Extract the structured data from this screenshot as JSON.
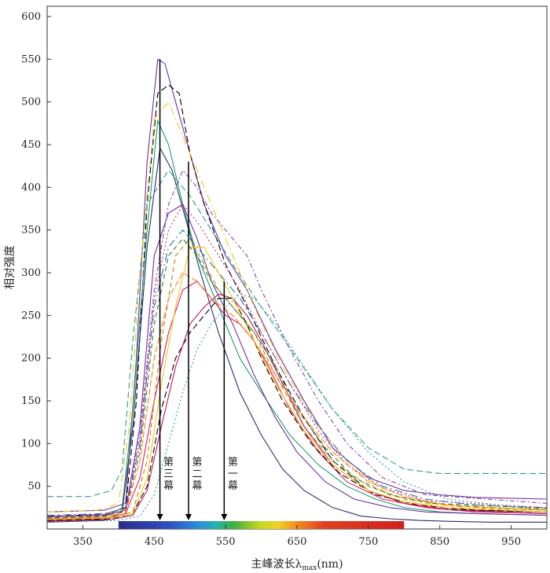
{
  "chart_data": {
    "type": "line",
    "title": "",
    "xlabel": "主峰波长λ",
    "xlabel_sub": "max",
    "xlabel_unit": "(nm)",
    "ylabel": "相对强度",
    "xlim": [
      300,
      1000
    ],
    "ylim": [
      0,
      612
    ],
    "x_ticks": [
      350,
      450,
      550,
      650,
      750,
      850,
      950
    ],
    "y_ticks": [
      50,
      100,
      150,
      200,
      250,
      300,
      350,
      400,
      450,
      500,
      550,
      600
    ],
    "grid": false,
    "legend": "none",
    "spectrum_bar": {
      "from": 400,
      "to": 800
    },
    "annotations": [
      {
        "text": "第三幕",
        "x": 458,
        "y_top": 550
      },
      {
        "text": "第二幕",
        "x": 498,
        "y_top": 430
      },
      {
        "text": "第一幕",
        "x": 548,
        "y_top": 290
      }
    ],
    "series": [
      {
        "color": "#7030a0",
        "dash": "solid",
        "x": [
          300,
          380,
          410,
          425,
          440,
          455,
          465,
          480,
          500,
          520,
          550,
          580,
          620,
          660,
          700,
          750,
          800,
          850,
          900,
          1000
        ],
        "y": [
          20,
          22,
          30,
          200,
          430,
          550,
          545,
          500,
          440,
          380,
          320,
          280,
          210,
          150,
          95,
          60,
          45,
          40,
          37,
          35
        ]
      },
      {
        "color": "#000000",
        "dash": "8,4",
        "x": [
          300,
          380,
          410,
          425,
          440,
          455,
          470,
          485,
          500,
          520,
          550,
          580,
          620,
          660,
          700,
          750,
          800,
          850,
          900,
          1000
        ],
        "y": [
          15,
          17,
          25,
          150,
          380,
          510,
          520,
          510,
          440,
          380,
          310,
          260,
          190,
          130,
          80,
          45,
          30,
          24,
          22,
          20
        ]
      },
      {
        "color": "#1aa06a",
        "dash": "solid",
        "x": [
          300,
          380,
          405,
          420,
          440,
          455,
          470,
          490,
          510,
          540,
          570,
          600,
          640,
          680,
          720,
          760,
          800,
          850,
          900,
          1000
        ],
        "y": [
          12,
          14,
          25,
          140,
          350,
          478,
          450,
          380,
          320,
          260,
          200,
          160,
          110,
          75,
          50,
          35,
          25,
          20,
          18,
          16
        ]
      },
      {
        "color": "#2d2d6e",
        "dash": "solid",
        "x": [
          300,
          380,
          405,
          420,
          440,
          458,
          475,
          495,
          515,
          540,
          570,
          600,
          630,
          660,
          700,
          740,
          780,
          820,
          860,
          920,
          1000
        ],
        "y": [
          8,
          10,
          20,
          120,
          330,
          446,
          420,
          360,
          300,
          230,
          160,
          110,
          70,
          45,
          25,
          15,
          12,
          10,
          9,
          8,
          8
        ]
      },
      {
        "color": "#2e9e8a",
        "dash": "8,4",
        "x": [
          300,
          360,
          390,
          405,
          420,
          440,
          470,
          500,
          530,
          560,
          600,
          650,
          700,
          750,
          800,
          850,
          900,
          950,
          1000
        ],
        "y": [
          38,
          38,
          45,
          70,
          220,
          380,
          420,
          390,
          350,
          310,
          260,
          200,
          140,
          95,
          70,
          65,
          65,
          65,
          65
        ]
      },
      {
        "color": "#f5c518",
        "dash": "10,4,2,4",
        "x": [
          300,
          370,
          400,
          415,
          430,
          450,
          470,
          490,
          520,
          550,
          590,
          630,
          680,
          730,
          780,
          830,
          880,
          950,
          1000
        ],
        "y": [
          20,
          22,
          30,
          120,
          300,
          480,
          500,
          460,
          400,
          340,
          260,
          190,
          120,
          70,
          40,
          30,
          26,
          24,
          23
        ]
      },
      {
        "color": "#7030a0",
        "dash": "solid",
        "x": [
          300,
          380,
          410,
          430,
          450,
          470,
          490,
          510,
          530,
          560,
          590,
          620,
          650,
          690,
          730,
          780,
          830,
          900,
          1000
        ],
        "y": [
          14,
          16,
          22,
          120,
          320,
          370,
          380,
          340,
          290,
          240,
          180,
          130,
          90,
          55,
          35,
          25,
          20,
          18,
          16
        ]
      },
      {
        "color": "#e41a6c",
        "dash": "solid",
        "x": [
          300,
          380,
          410,
          430,
          450,
          470,
          490,
          510,
          530,
          550,
          570,
          590,
          610,
          640,
          680,
          720,
          770,
          830,
          900,
          1000
        ],
        "y": [
          10,
          12,
          18,
          60,
          150,
          230,
          280,
          290,
          270,
          250,
          240,
          220,
          190,
          140,
          90,
          55,
          35,
          25,
          20,
          18
        ]
      },
      {
        "color": "#b8860b",
        "dash": "6,4",
        "x": [
          300,
          390,
          420,
          440,
          460,
          480,
          500,
          520,
          540,
          560,
          590,
          620,
          660,
          700,
          750,
          800,
          860,
          920,
          1000
        ],
        "y": [
          12,
          14,
          20,
          80,
          220,
          320,
          340,
          310,
          280,
          260,
          230,
          180,
          120,
          80,
          50,
          35,
          28,
          24,
          22
        ]
      },
      {
        "color": "#000000",
        "dash": "8,4",
        "x": [
          300,
          390,
          420,
          440,
          460,
          480,
          500,
          520,
          540,
          560,
          580,
          600,
          630,
          670,
          710,
          760,
          820,
          900,
          1000
        ],
        "y": [
          10,
          12,
          18,
          50,
          140,
          200,
          230,
          250,
          270,
          270,
          240,
          200,
          150,
          100,
          65,
          40,
          28,
          22,
          20
        ]
      },
      {
        "color": "#c2185b",
        "dash": "solid",
        "x": [
          300,
          390,
          420,
          440,
          460,
          480,
          500,
          520,
          540,
          560,
          580,
          600,
          630,
          660,
          700,
          750,
          800,
          870,
          1000
        ],
        "y": [
          9,
          11,
          16,
          45,
          120,
          190,
          240,
          260,
          275,
          270,
          250,
          220,
          170,
          120,
          75,
          45,
          30,
          22,
          18
        ]
      },
      {
        "color": "#1f78b4",
        "dash": "10,4,2,4",
        "x": [
          300,
          380,
          410,
          430,
          450,
          470,
          490,
          510,
          540,
          570,
          600,
          640,
          680,
          720,
          770,
          830,
          900,
          1000
        ],
        "y": [
          16,
          18,
          24,
          100,
          260,
          330,
          350,
          330,
          300,
          270,
          230,
          170,
          120,
          80,
          50,
          35,
          28,
          25
        ]
      },
      {
        "color": "#f5c518",
        "dash": "solid",
        "x": [
          300,
          390,
          420,
          440,
          460,
          480,
          500,
          520,
          540,
          560,
          590,
          620,
          660,
          700,
          750,
          800,
          860,
          1000
        ],
        "y": [
          11,
          13,
          18,
          60,
          170,
          260,
          330,
          330,
          300,
          270,
          220,
          170,
          115,
          75,
          45,
          32,
          25,
          20
        ]
      },
      {
        "color": "#2e7d32",
        "dash": "6,4",
        "x": [
          300,
          380,
          410,
          430,
          450,
          470,
          490,
          510,
          530,
          560,
          590,
          620,
          650,
          690,
          730,
          780,
          840,
          1000
        ],
        "y": [
          13,
          15,
          22,
          90,
          240,
          320,
          340,
          320,
          290,
          260,
          230,
          190,
          140,
          95,
          60,
          40,
          30,
          24
        ]
      },
      {
        "color": "#e41a6c",
        "dash": "2,3",
        "x": [
          300,
          380,
          410,
          430,
          450,
          470,
          490,
          510,
          540,
          570,
          600,
          640,
          680,
          720,
          770,
          830,
          1000
        ],
        "y": [
          14,
          16,
          22,
          100,
          270,
          350,
          380,
          360,
          320,
          280,
          230,
          170,
          115,
          75,
          48,
          33,
          25
        ]
      },
      {
        "color": "#8e44ad",
        "dash": "6,3,2,3",
        "x": [
          300,
          380,
          410,
          430,
          450,
          470,
          490,
          510,
          530,
          560,
          580,
          600,
          640,
          680,
          720,
          770,
          830,
          1000
        ],
        "y": [
          15,
          17,
          24,
          110,
          280,
          380,
          420,
          400,
          370,
          340,
          320,
          280,
          210,
          150,
          100,
          60,
          40,
          30
        ]
      },
      {
        "color": "#20a0a0",
        "dash": "2,3",
        "x": [
          300,
          400,
          430,
          450,
          470,
          490,
          510,
          530,
          550,
          570,
          590,
          620,
          660,
          700,
          750,
          800,
          860,
          1000
        ],
        "y": [
          8,
          10,
          15,
          40,
          100,
          160,
          210,
          240,
          260,
          275,
          270,
          240,
          190,
          140,
          90,
          55,
          35,
          22
        ]
      },
      {
        "color": "#ff7f0e",
        "dash": "8,3",
        "x": [
          300,
          380,
          410,
          430,
          450,
          470,
          490,
          510,
          530,
          560,
          590,
          620,
          660,
          700,
          750,
          800,
          860,
          1000
        ],
        "y": [
          12,
          14,
          20,
          80,
          200,
          270,
          300,
          290,
          270,
          250,
          220,
          180,
          130,
          90,
          55,
          38,
          28,
          22
        ]
      }
    ]
  }
}
